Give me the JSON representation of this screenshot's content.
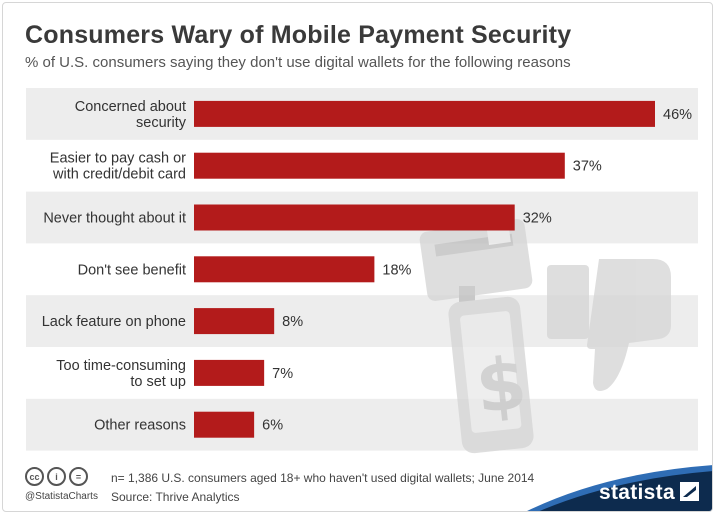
{
  "title": "Consumers Wary of Mobile Payment Security",
  "subtitle": "% of U.S. consumers saying they don't use digital wallets for the following reasons",
  "footer": {
    "note": "n= 1,386 U.S. consumers aged 18+ who haven't used digital wallets; June 2014",
    "source": "Source: Thrive Analytics",
    "handle": "@StatistaCharts",
    "brand": "statista",
    "license_icons": [
      "cc-icon",
      "by-icon",
      "nd-icon"
    ]
  },
  "colors": {
    "bar": "#b31b1b",
    "stripe": "#ededed",
    "title": "#3a3a3a",
    "brand_band": "#0d2b4e",
    "brand_accent": "#2f6db5"
  },
  "chart_data": {
    "type": "bar",
    "orientation": "horizontal",
    "categories": [
      [
        "Concerned about",
        "security"
      ],
      [
        "Easier to pay cash or",
        "with credit/debit card"
      ],
      [
        "Never thought about it"
      ],
      [
        "Don't see benefit"
      ],
      [
        "Lack feature on phone"
      ],
      [
        "Too time-consuming",
        "to set up"
      ],
      [
        "Other reasons"
      ]
    ],
    "values": [
      46,
      37,
      32,
      18,
      8,
      7,
      6
    ],
    "value_labels": [
      "46%",
      "37%",
      "32%",
      "18%",
      "8%",
      "7%",
      "6%"
    ],
    "xlim": [
      0,
      46
    ],
    "grid": false,
    "legend": "none"
  }
}
